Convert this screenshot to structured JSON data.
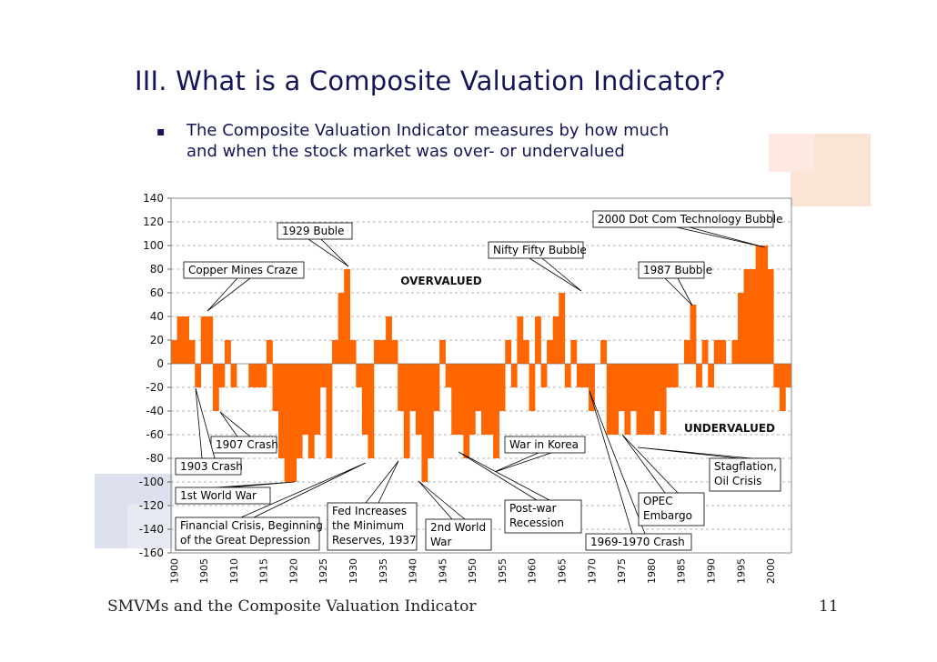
{
  "slide": {
    "title": "III. What is a Composite Valuation Indicator?",
    "bullet_symbol": "▪",
    "bullet_lines": [
      "The Composite Valuation Indicator measures by how much",
      "and when the stock market was over- or undervalued"
    ],
    "footer_left": "SMVMs and the Composite Valuation Indicator",
    "page_number": "11",
    "colors": {
      "title": "#14145a",
      "decor": "#fbe3d6",
      "decor_left": "#dde0ee"
    }
  },
  "chart_data": {
    "type": "bar",
    "title": "",
    "xlabel": "",
    "ylabel": "",
    "ylim": [
      -160,
      140
    ],
    "yticks": [
      "140",
      "120",
      "100",
      "80",
      "60",
      "40",
      "20",
      "0",
      "-20",
      "-40",
      "-60",
      "-80",
      "-100",
      "-120",
      "-140",
      "-160"
    ],
    "xticks": [
      "1900",
      "1905",
      "1910",
      "1915",
      "1920",
      "1925",
      "1930",
      "1935",
      "1940",
      "1945",
      "1950",
      "1955",
      "1960",
      "1965",
      "1970",
      "1975",
      "1980",
      "1985",
      "1990",
      "1995",
      "2000"
    ],
    "xlim": [
      1900,
      2004
    ],
    "grid": true,
    "bar_color": "#ff6600",
    "region_labels": {
      "overvalued": "OVERVALUED",
      "undervalued": "UNDERVALUED"
    },
    "series": [
      {
        "x": [
          1900,
          1901,
          1902,
          1903,
          1904,
          1905,
          1906,
          1907,
          1908,
          1909,
          1910,
          1911,
          1912,
          1913,
          1914,
          1915,
          1916,
          1917,
          1918,
          1919,
          1920,
          1921,
          1922,
          1923,
          1924,
          1925,
          1926,
          1927,
          1928,
          1929,
          1930,
          1931,
          1932,
          1933,
          1934,
          1935,
          1936,
          1937,
          1938,
          1939,
          1940,
          1941,
          1942,
          1943,
          1944,
          1945,
          1946,
          1947,
          1948,
          1949,
          1950,
          1951,
          1952,
          1953,
          1954,
          1955,
          1956,
          1957,
          1958,
          1959,
          1960,
          1961,
          1962,
          1963,
          1964,
          1965,
          1966,
          1967,
          1968,
          1969,
          1970,
          1971,
          1972,
          1973,
          1974,
          1975,
          1976,
          1977,
          1978,
          1979,
          1980,
          1981,
          1982,
          1983,
          1984,
          1985,
          1986,
          1987,
          1988,
          1989,
          1990,
          1991,
          1992,
          1993,
          1994,
          1995,
          1996,
          1997,
          1998,
          1999,
          2000,
          2001,
          2002,
          2003
        ],
        "values": [
          20,
          40,
          40,
          20,
          -20,
          40,
          40,
          -40,
          -20,
          20,
          -20,
          0,
          0,
          -20,
          -20,
          -20,
          20,
          -40,
          -80,
          -100,
          -100,
          -80,
          -60,
          -80,
          -60,
          -20,
          -80,
          20,
          60,
          80,
          20,
          -20,
          -60,
          -80,
          20,
          20,
          40,
          20,
          -40,
          -80,
          -40,
          -60,
          -100,
          -80,
          -40,
          20,
          -20,
          -60,
          -60,
          -80,
          -60,
          -40,
          -60,
          -60,
          -80,
          -40,
          20,
          -20,
          40,
          20,
          -40,
          40,
          -20,
          20,
          40,
          60,
          -20,
          20,
          -20,
          -20,
          -40,
          0,
          20,
          -60,
          -60,
          -40,
          -60,
          -40,
          -60,
          -60,
          -60,
          -40,
          -60,
          -20,
          -20,
          0,
          20,
          50,
          -20,
          20,
          -20,
          20,
          20,
          0,
          20,
          60,
          80,
          80,
          100,
          100,
          80,
          -20,
          -40,
          -20
        ]
      }
    ],
    "annotations": [
      {
        "text": "Copper Mines Craze",
        "x": 1906,
        "y": 40
      },
      {
        "text": "1929 Buble",
        "x": 1929,
        "y": 80
      },
      {
        "text": "Nifty Fifty Bubble",
        "x": 1968,
        "y": 60
      },
      {
        "text": "2000 Dot Com Technology Bubble",
        "x": 1999,
        "y": 100
      },
      {
        "text": "1987 Bubble",
        "x": 1987,
        "y": 50
      },
      {
        "text": "1907 Crash",
        "x": 1907,
        "y": -40
      },
      {
        "text": "1903 Crash",
        "x": 1903,
        "y": -20
      },
      {
        "text": "1st World War",
        "x": 1919,
        "y": -100
      },
      {
        "text": "Financial Crisis, Beginning of the Great Depression",
        "x": 1932,
        "y": -80
      },
      {
        "text": "Fed Increases the Minimum Reserves, 1937",
        "x": 1937,
        "y": -80
      },
      {
        "text": "2nd World War",
        "x": 1941,
        "y": -100
      },
      {
        "text": "War in Korea",
        "x": 1954,
        "y": -80
      },
      {
        "text": "Post-war Recession",
        "x": 1948,
        "y": -70
      },
      {
        "text": "1969-1970 Crash",
        "x": 1969,
        "y": -20
      },
      {
        "text": "OPEC Embargo",
        "x": 1974,
        "y": -60
      },
      {
        "text": "Stagflation, Oil Crisis",
        "x": 1980,
        "y": -70
      }
    ]
  }
}
